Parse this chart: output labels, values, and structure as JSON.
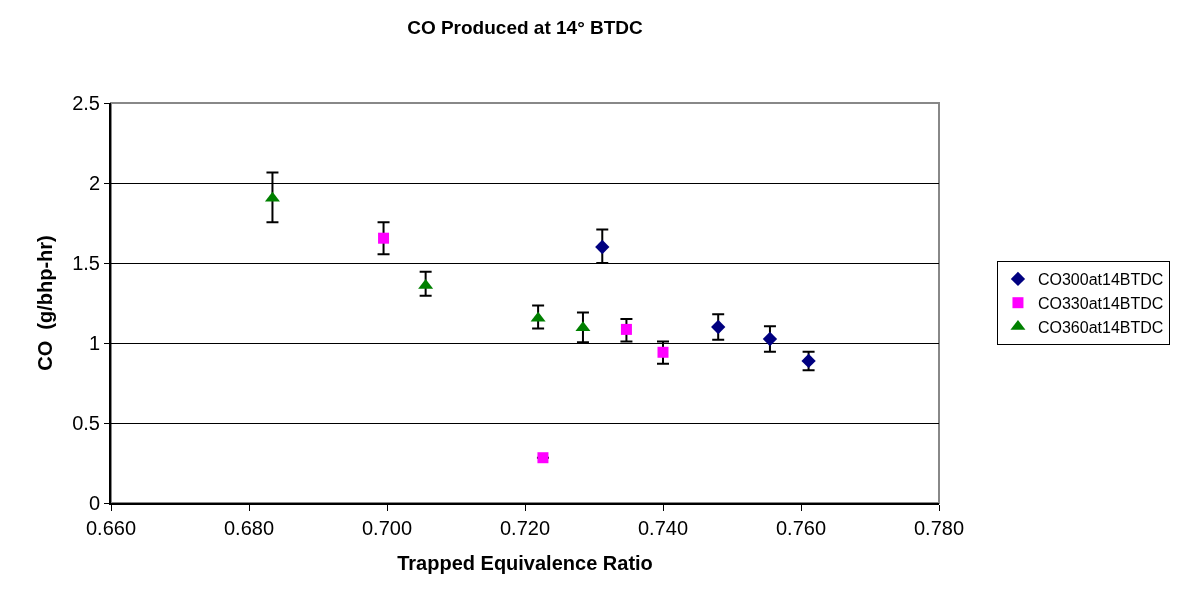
{
  "chart_data": {
    "type": "scatter",
    "title": "CO Produced at 14° BTDC",
    "xlabel": "Trapped Equivalence Ratio",
    "ylabel": "CO  (g/bhp-hr)",
    "series": [
      {
        "name": "CO300at14BTDC",
        "color": "#000080",
        "marker": "diamond",
        "x": [
          0.7312,
          0.748,
          0.7555,
          0.7611
        ],
        "values": [
          1.6,
          1.1,
          1.025,
          0.888
        ],
        "errors": [
          [
            1.5,
            1.71
          ],
          [
            1.02,
            1.18
          ],
          [
            0.945,
            1.105
          ],
          [
            0.83,
            0.945
          ]
        ]
      },
      {
        "name": "CO330at14BTDC",
        "color": "#ff00ff",
        "marker": "square",
        "x": [
          0.6995,
          0.7226,
          0.7347,
          0.74
        ],
        "values": [
          1.655,
          0.283,
          1.085,
          0.942
        ],
        "errors": [
          [
            1.555,
            1.755
          ],
          null,
          [
            1.01,
            1.15
          ],
          [
            0.87,
            1.01
          ]
        ]
      },
      {
        "name": "CO360at14BTDC",
        "color": "#008000",
        "marker": "triangle",
        "x": [
          0.6834,
          0.7056,
          0.7219,
          0.7284
        ],
        "values": [
          1.905,
          1.36,
          1.155,
          1.095
        ],
        "errors": [
          [
            1.755,
            2.065
          ],
          [
            1.295,
            1.445
          ],
          [
            1.09,
            1.235
          ],
          [
            1.005,
            1.19
          ]
        ]
      }
    ],
    "xlim": [
      0.66,
      0.78
    ],
    "xticks": [
      {
        "value": 0.66,
        "label": "0.660"
      },
      {
        "value": 0.68,
        "label": "0.680"
      },
      {
        "value": 0.7,
        "label": "0.700"
      },
      {
        "value": 0.72,
        "label": "0.720"
      },
      {
        "value": 0.74,
        "label": "0.740"
      },
      {
        "value": 0.76,
        "label": "0.760"
      },
      {
        "value": 0.78,
        "label": "0.780"
      }
    ],
    "ylim": [
      0,
      2.5
    ],
    "yticks": [
      0,
      0.5,
      1,
      1.5,
      2,
      2.5
    ],
    "grid": "y",
    "legend": "right"
  }
}
